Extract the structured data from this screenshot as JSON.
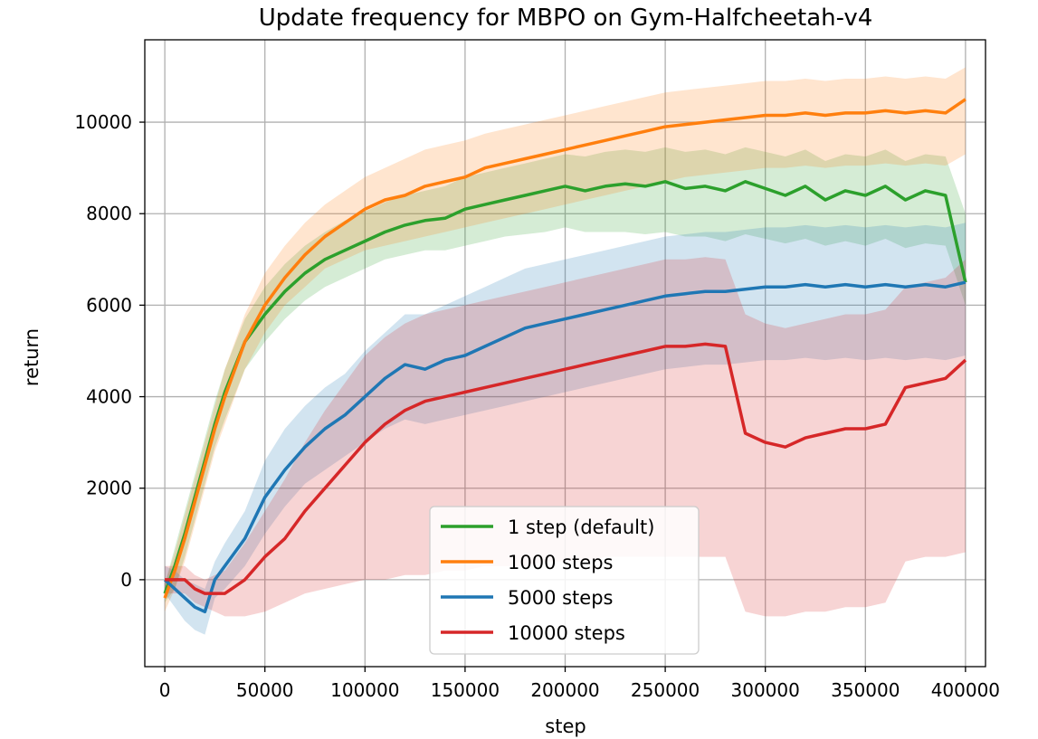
{
  "chart_data": {
    "type": "line",
    "title": "Update frequency for MBPO on Gym-Halfcheetah-v4",
    "xlabel": "step",
    "ylabel": "return",
    "xlim": [
      -10000,
      410000
    ],
    "ylim": [
      -1900,
      11800
    ],
    "xticks": [
      0,
      50000,
      100000,
      150000,
      200000,
      250000,
      300000,
      350000,
      400000
    ],
    "xtick_labels": [
      "0",
      "50000",
      "100000",
      "150000",
      "200000",
      "250000",
      "300000",
      "350000",
      "400000"
    ],
    "yticks": [
      0,
      2000,
      4000,
      6000,
      8000,
      10000
    ],
    "ytick_labels": [
      "0",
      "2000",
      "4000",
      "6000",
      "8000",
      "10000"
    ],
    "grid": true,
    "legend_position": "lower-center",
    "shaded_band": "min-max range across runs",
    "series": [
      {
        "name": "1 step (default)",
        "color": "#2ca02c",
        "x": [
          0,
          5000,
          10000,
          15000,
          20000,
          25000,
          30000,
          40000,
          50000,
          60000,
          70000,
          80000,
          90000,
          100000,
          110000,
          120000,
          130000,
          140000,
          150000,
          160000,
          170000,
          180000,
          190000,
          200000,
          210000,
          220000,
          230000,
          240000,
          250000,
          260000,
          270000,
          280000,
          290000,
          300000,
          310000,
          320000,
          330000,
          340000,
          350000,
          360000,
          370000,
          380000,
          390000,
          400000
        ],
        "values": [
          -300,
          300,
          1000,
          1800,
          2600,
          3400,
          4100,
          5200,
          5800,
          6300,
          6700,
          7000,
          7200,
          7400,
          7600,
          7750,
          7850,
          7900,
          8100,
          8200,
          8300,
          8400,
          8500,
          8600,
          8500,
          8600,
          8650,
          8600,
          8700,
          8550,
          8600,
          8500,
          8700,
          8550,
          8400,
          8600,
          8300,
          8500,
          8400,
          8600,
          8300,
          8500,
          8400,
          6500
        ],
        "band_low": [
          -500,
          -200,
          500,
          1300,
          2100,
          2900,
          3500,
          4600,
          5200,
          5700,
          6100,
          6400,
          6600,
          6800,
          7000,
          7100,
          7200,
          7200,
          7300,
          7400,
          7500,
          7550,
          7600,
          7700,
          7600,
          7600,
          7600,
          7550,
          7600,
          7500,
          7500,
          7400,
          7550,
          7450,
          7350,
          7450,
          7300,
          7400,
          7300,
          7450,
          7250,
          7350,
          7300,
          6000
        ],
        "band_high": [
          -100,
          700,
          1500,
          2300,
          3100,
          3900,
          4600,
          5700,
          6400,
          6900,
          7300,
          7600,
          7850,
          8050,
          8250,
          8400,
          8500,
          8600,
          8800,
          8900,
          9000,
          9100,
          9200,
          9300,
          9250,
          9350,
          9400,
          9350,
          9450,
          9350,
          9400,
          9300,
          9450,
          9350,
          9250,
          9400,
          9150,
          9300,
          9250,
          9400,
          9150,
          9300,
          9250,
          8000
        ]
      },
      {
        "name": "1000 steps",
        "color": "#ff7f0e",
        "x": [
          0,
          5000,
          10000,
          15000,
          20000,
          25000,
          30000,
          40000,
          50000,
          60000,
          70000,
          80000,
          90000,
          100000,
          110000,
          120000,
          130000,
          140000,
          150000,
          160000,
          170000,
          180000,
          190000,
          200000,
          210000,
          220000,
          230000,
          240000,
          250000,
          260000,
          270000,
          280000,
          290000,
          300000,
          310000,
          320000,
          330000,
          340000,
          350000,
          360000,
          370000,
          380000,
          390000,
          400000
        ],
        "values": [
          -400,
          200,
          900,
          1700,
          2500,
          3300,
          4000,
          5200,
          6000,
          6600,
          7100,
          7500,
          7800,
          8100,
          8300,
          8400,
          8600,
          8700,
          8800,
          9000,
          9100,
          9200,
          9300,
          9400,
          9500,
          9600,
          9700,
          9800,
          9900,
          9950,
          10000,
          10050,
          10100,
          10150,
          10150,
          10200,
          10150,
          10200,
          10200,
          10250,
          10200,
          10250,
          10200,
          10500
        ],
        "band_low": [
          -700,
          -200,
          400,
          1200,
          2000,
          2800,
          3400,
          4600,
          5400,
          6000,
          6400,
          6800,
          7000,
          7200,
          7300,
          7400,
          7500,
          7600,
          7700,
          7800,
          7900,
          8000,
          8100,
          8200,
          8300,
          8400,
          8500,
          8600,
          8700,
          8800,
          8850,
          8900,
          8950,
          9000,
          9000,
          9050,
          9000,
          9050,
          9050,
          9100,
          9050,
          9100,
          9050,
          9300
        ],
        "band_high": [
          -100,
          600,
          1400,
          2200,
          3000,
          3800,
          4600,
          5800,
          6700,
          7300,
          7800,
          8200,
          8500,
          8800,
          9000,
          9200,
          9400,
          9500,
          9600,
          9750,
          9850,
          9950,
          10050,
          10150,
          10250,
          10350,
          10450,
          10550,
          10650,
          10700,
          10750,
          10800,
          10850,
          10900,
          10900,
          10950,
          10900,
          10950,
          10950,
          11000,
          10950,
          11000,
          10950,
          11200
        ]
      },
      {
        "name": "5000 steps",
        "color": "#1f77b4",
        "x": [
          0,
          5000,
          10000,
          15000,
          20000,
          25000,
          30000,
          40000,
          50000,
          60000,
          70000,
          80000,
          90000,
          100000,
          110000,
          120000,
          130000,
          140000,
          150000,
          160000,
          170000,
          180000,
          190000,
          200000,
          210000,
          220000,
          230000,
          240000,
          250000,
          260000,
          270000,
          280000,
          290000,
          300000,
          310000,
          320000,
          330000,
          340000,
          350000,
          360000,
          370000,
          380000,
          390000,
          400000
        ],
        "values": [
          0,
          -200,
          -400,
          -600,
          -700,
          0,
          300,
          900,
          1800,
          2400,
          2900,
          3300,
          3600,
          4000,
          4400,
          4700,
          4600,
          4800,
          4900,
          5100,
          5300,
          5500,
          5600,
          5700,
          5800,
          5900,
          6000,
          6100,
          6200,
          6250,
          6300,
          6300,
          6350,
          6400,
          6400,
          6450,
          6400,
          6450,
          6400,
          6450,
          6400,
          6450,
          6400,
          6500
        ],
        "band_low": [
          -300,
          -600,
          -900,
          -1100,
          -1200,
          -400,
          -200,
          300,
          1000,
          1600,
          2100,
          2400,
          2700,
          3000,
          3300,
          3500,
          3400,
          3500,
          3600,
          3700,
          3800,
          3900,
          4000,
          4100,
          4200,
          4300,
          4400,
          4500,
          4600,
          4650,
          4700,
          4700,
          4750,
          4800,
          4800,
          4850,
          4800,
          4850,
          4800,
          4850,
          4800,
          4850,
          4800,
          4900
        ],
        "band_high": [
          300,
          200,
          0,
          -100,
          -200,
          400,
          800,
          1500,
          2600,
          3300,
          3800,
          4200,
          4500,
          5000,
          5400,
          5800,
          5800,
          6000,
          6200,
          6400,
          6600,
          6800,
          6900,
          7000,
          7100,
          7200,
          7300,
          7400,
          7500,
          7550,
          7600,
          7600,
          7650,
          7700,
          7700,
          7750,
          7700,
          7750,
          7700,
          7750,
          7700,
          7750,
          7700,
          7800
        ]
      },
      {
        "name": "10000 steps",
        "color": "#d62728",
        "x": [
          0,
          5000,
          10000,
          15000,
          20000,
          25000,
          30000,
          40000,
          50000,
          60000,
          70000,
          80000,
          90000,
          100000,
          110000,
          120000,
          130000,
          140000,
          150000,
          160000,
          170000,
          180000,
          190000,
          200000,
          210000,
          220000,
          230000,
          240000,
          250000,
          260000,
          270000,
          280000,
          290000,
          300000,
          310000,
          320000,
          330000,
          340000,
          350000,
          360000,
          370000,
          380000,
          390000,
          400000
        ],
        "values": [
          0,
          0,
          0,
          -200,
          -300,
          -300,
          -300,
          0,
          500,
          900,
          1500,
          2000,
          2500,
          3000,
          3400,
          3700,
          3900,
          4000,
          4100,
          4200,
          4300,
          4400,
          4500,
          4600,
          4700,
          4800,
          4900,
          5000,
          5100,
          5100,
          5150,
          5100,
          3200,
          3000,
          2900,
          3100,
          3200,
          3300,
          3300,
          3400,
          4200,
          4300,
          4400,
          4800
        ],
        "band_low": [
          -300,
          -300,
          -300,
          -500,
          -600,
          -700,
          -800,
          -800,
          -700,
          -500,
          -300,
          -200,
          -100,
          0,
          0,
          100,
          100,
          200,
          200,
          300,
          300,
          300,
          400,
          400,
          400,
          500,
          500,
          500,
          500,
          500,
          500,
          500,
          -700,
          -800,
          -800,
          -700,
          -700,
          -600,
          -600,
          -500,
          400,
          500,
          500,
          600
        ],
        "band_high": [
          300,
          300,
          300,
          100,
          0,
          100,
          200,
          800,
          1500,
          2200,
          3000,
          3700,
          4300,
          4900,
          5300,
          5600,
          5800,
          5900,
          6000,
          6100,
          6200,
          6300,
          6400,
          6500,
          6600,
          6700,
          6800,
          6900,
          7000,
          7000,
          7050,
          7000,
          5800,
          5600,
          5500,
          5600,
          5700,
          5800,
          5800,
          5900,
          6400,
          6500,
          6600,
          7000
        ]
      }
    ]
  }
}
